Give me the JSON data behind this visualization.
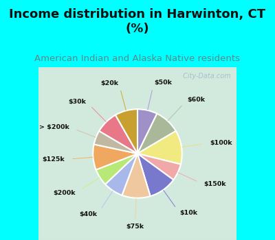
{
  "title": "Income distribution in Harwinton, CT\n(%)",
  "subtitle": "American Indian and Alaska Native residents",
  "title_color": "#111111",
  "subtitle_color": "#5a8a8a",
  "bg_cyan": "#00FFFF",
  "bg_chart_color": "#d8ede0",
  "labels": [
    "$50k",
    "$60k",
    "$100k",
    "$150k",
    "$10k",
    "$75k",
    "$40k",
    "$200k",
    "$125k",
    "> $200k",
    "$30k",
    "$20k"
  ],
  "values": [
    7,
    9,
    12,
    6,
    10,
    10,
    7,
    6,
    9,
    5,
    8,
    8
  ],
  "colors": [
    "#a090c8",
    "#a8b898",
    "#f0ea80",
    "#f0a8a8",
    "#7878cc",
    "#f0c8a0",
    "#a8b8e8",
    "#b8e878",
    "#f0a860",
    "#c0b8a0",
    "#e87888",
    "#c8a030"
  ],
  "line_colors": [
    "#b0a0d8",
    "#b0c8a8",
    "#e8e090",
    "#f0b0b0",
    "#8888d0",
    "#f0d0b0",
    "#b8c8f0",
    "#c8f090",
    "#f0b870",
    "#d0c8b0",
    "#f09098",
    "#d0b040"
  ],
  "watermark": " City-Data.com",
  "title_fontsize": 13,
  "subtitle_fontsize": 9.5
}
